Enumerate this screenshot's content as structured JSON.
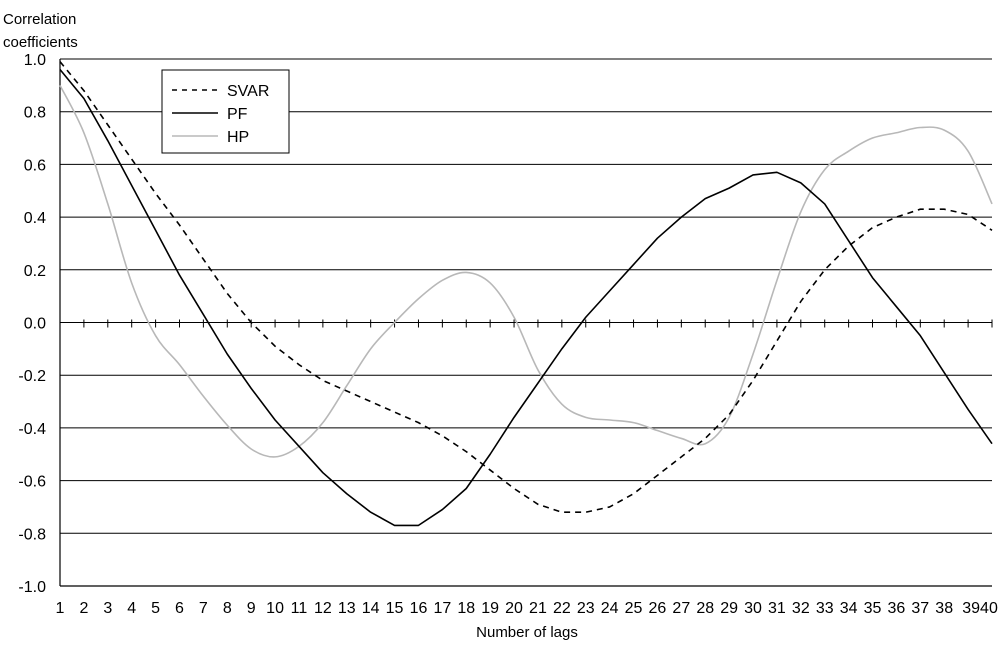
{
  "chart_data": {
    "type": "line",
    "title": "",
    "ylabel_lines": [
      "Correlation",
      "coefficients"
    ],
    "xlabel": "Number of lags",
    "ylim": [
      -1.0,
      1.0
    ],
    "yticks": [
      "1.0",
      "0.8",
      "0.6",
      "0.4",
      "0.2",
      "0.0",
      "-0.2",
      "-0.4",
      "-0.6",
      "-0.8",
      "-1.0"
    ],
    "ytick_values": [
      1.0,
      0.8,
      0.6,
      0.4,
      0.2,
      0.0,
      -0.2,
      -0.4,
      -0.6,
      -0.8,
      -1.0
    ],
    "grid": "horizontal",
    "legend": "top-left",
    "x": [
      1,
      2,
      3,
      4,
      5,
      6,
      7,
      8,
      9,
      10,
      11,
      12,
      13,
      14,
      15,
      16,
      17,
      18,
      19,
      20,
      21,
      22,
      23,
      24,
      25,
      26,
      27,
      28,
      29,
      30,
      31,
      32,
      33,
      34,
      35,
      36,
      37,
      38,
      39,
      40
    ],
    "xtick_labels": [
      "1",
      "2",
      "3",
      "4",
      "5",
      "6",
      "7",
      "8",
      "9",
      "10",
      "11",
      "12",
      "13",
      "14",
      "15",
      "16",
      "17",
      "18",
      "19",
      "20",
      "21",
      "22",
      "23",
      "24",
      "25",
      "26",
      "27",
      "28",
      "29",
      "30",
      "31",
      "32",
      "33",
      "34",
      "35",
      "36",
      "37",
      "38",
      "3940",
      ""
    ],
    "series": [
      {
        "name": "SVAR",
        "style": "dashed",
        "color": "#000000",
        "values": [
          0.99,
          0.88,
          0.75,
          0.62,
          0.49,
          0.37,
          0.24,
          0.11,
          0.0,
          -0.09,
          -0.16,
          -0.22,
          -0.26,
          -0.3,
          -0.34,
          -0.38,
          -0.43,
          -0.49,
          -0.56,
          -0.63,
          -0.69,
          -0.72,
          -0.72,
          -0.7,
          -0.65,
          -0.58,
          -0.51,
          -0.44,
          -0.35,
          -0.22,
          -0.07,
          0.08,
          0.2,
          0.29,
          0.36,
          0.4,
          0.43,
          0.43,
          0.41,
          0.35
        ]
      },
      {
        "name": "PF",
        "style": "solid",
        "color": "#000000",
        "values": [
          0.96,
          0.85,
          0.69,
          0.52,
          0.35,
          0.18,
          0.03,
          -0.12,
          -0.25,
          -0.37,
          -0.47,
          -0.57,
          -0.65,
          -0.72,
          -0.77,
          -0.77,
          -0.71,
          -0.63,
          -0.5,
          -0.36,
          -0.23,
          -0.1,
          0.02,
          0.12,
          0.22,
          0.32,
          0.4,
          0.47,
          0.51,
          0.56,
          0.57,
          0.53,
          0.45,
          0.31,
          0.17,
          0.06,
          -0.05,
          -0.19,
          -0.33,
          -0.46
        ]
      },
      {
        "name": "HP",
        "style": "solid",
        "color": "#b8b8b8",
        "values": [
          0.9,
          0.72,
          0.45,
          0.15,
          -0.05,
          -0.16,
          -0.28,
          -0.39,
          -0.48,
          -0.51,
          -0.47,
          -0.38,
          -0.24,
          -0.1,
          0.0,
          0.09,
          0.16,
          0.19,
          0.15,
          0.02,
          -0.18,
          -0.31,
          -0.36,
          -0.37,
          -0.38,
          -0.41,
          -0.44,
          -0.46,
          -0.36,
          -0.12,
          0.16,
          0.42,
          0.58,
          0.65,
          0.7,
          0.72,
          0.74,
          0.73,
          0.65,
          0.45
        ]
      }
    ]
  }
}
